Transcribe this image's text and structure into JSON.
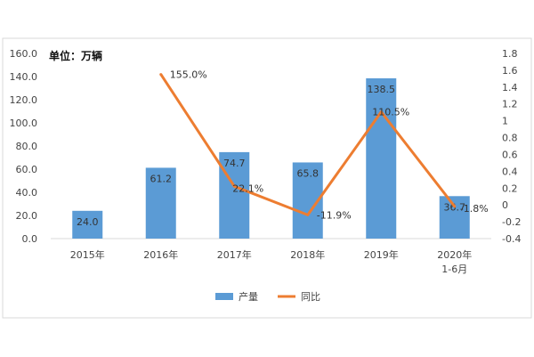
{
  "chart_data": {
    "type": "bar",
    "unit_label": "单位：万辆",
    "categories": [
      {
        "line1": "2015年",
        "line2": ""
      },
      {
        "line1": "2016年",
        "line2": ""
      },
      {
        "line1": "2017年",
        "line2": ""
      },
      {
        "line1": "2018年",
        "line2": ""
      },
      {
        "line1": "2019年",
        "line2": ""
      },
      {
        "line1": "2020年",
        "line2": "1-6月"
      }
    ],
    "series": [
      {
        "name": "产量",
        "kind": "bar",
        "axis": "left",
        "color": "#5b9bd5",
        "values": [
          24.0,
          61.2,
          74.7,
          65.8,
          138.5,
          36.7
        ],
        "labels": [
          "24.0",
          "61.2",
          "74.7",
          "65.8",
          "138.5",
          "36.7"
        ]
      },
      {
        "name": "同比",
        "kind": "line",
        "axis": "right",
        "color": "#ed7d31",
        "values": [
          null,
          1.55,
          0.221,
          -0.119,
          1.105,
          -0.018
        ],
        "labels": [
          "",
          "155.0%",
          "22.1%",
          "-11.9%",
          "110.5%",
          "-1.8%"
        ]
      }
    ],
    "y_left": {
      "min": 0,
      "max": 160,
      "ticks": [
        "0.0",
        "20.0",
        "40.0",
        "60.0",
        "80.0",
        "100.0",
        "120.0",
        "140.0",
        "160.0"
      ]
    },
    "y_right": {
      "min": -0.4,
      "max": 1.8,
      "ticks": [
        "-0.4",
        "-0.2",
        "0",
        "0.2",
        "0.4",
        "0.6",
        "0.8",
        "1",
        "1.2",
        "1.4",
        "1.6",
        "1.8"
      ]
    },
    "grid": false,
    "legend_position": "bottom"
  }
}
